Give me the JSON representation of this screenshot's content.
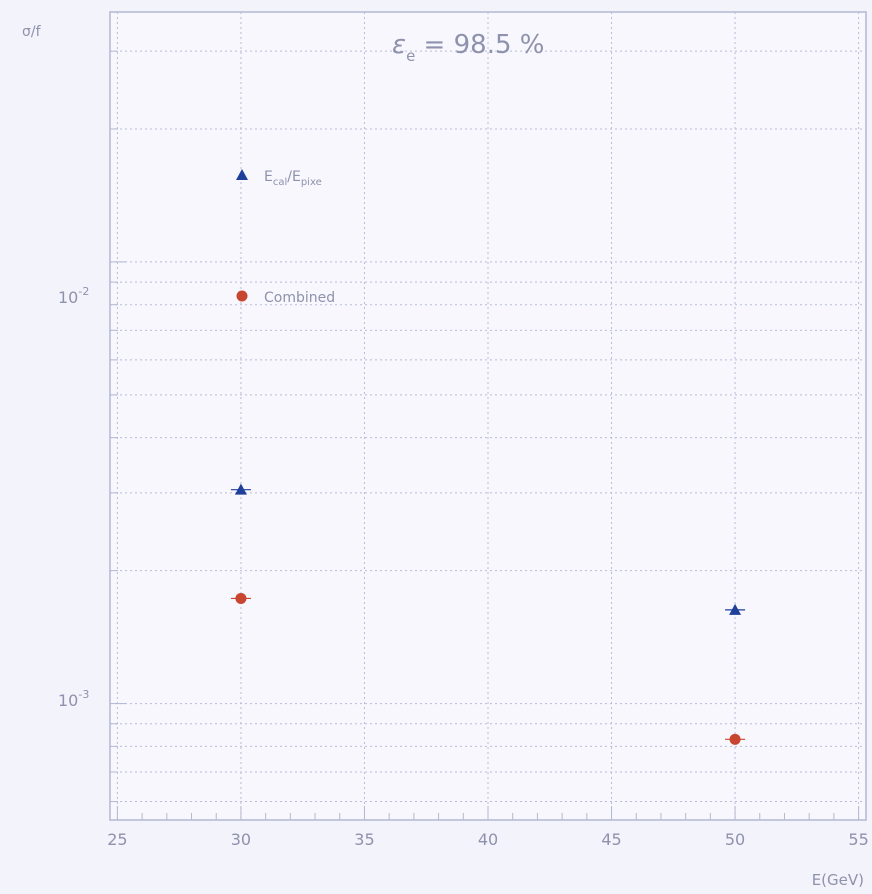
{
  "chart_data": {
    "type": "scatter",
    "title": "ε_e = 98.5 %",
    "title_parts": {
      "eps": "ε",
      "sub": "e",
      "rest": " = 98.5 %"
    },
    "xlabel": "E(GeV)",
    "ylabel": "σ/f",
    "y_scale": "log",
    "xlim": [
      24.7,
      55.3
    ],
    "ylim": [
      0.000545,
      0.0368
    ],
    "x_ticks": [
      25,
      30,
      35,
      40,
      45,
      50,
      55
    ],
    "x_tick_labels": [
      "25",
      "30",
      "35",
      "40",
      "45",
      "50",
      "55"
    ],
    "y_decade_labels": [
      {
        "value": 0.01,
        "base": "10",
        "exp": "-2"
      },
      {
        "value": 0.001,
        "base": "10",
        "exp": "-3"
      }
    ],
    "grid": true,
    "series": [
      {
        "name": "E_cal/E_pixe",
        "legend_main": "E",
        "legend_sub1": "cal",
        "legend_slash": "/E",
        "legend_sub2": "pixe",
        "marker": "triangle",
        "color": "#1f3f9a",
        "x": [
          30,
          50
        ],
        "y": [
          0.00305,
          0.00163
        ]
      },
      {
        "name": "Combined",
        "marker": "circle",
        "color": "#c8452f",
        "x": [
          30,
          50
        ],
        "y": [
          0.00173,
          0.00083
        ]
      }
    ],
    "legend_placement": "inside-top-left"
  }
}
